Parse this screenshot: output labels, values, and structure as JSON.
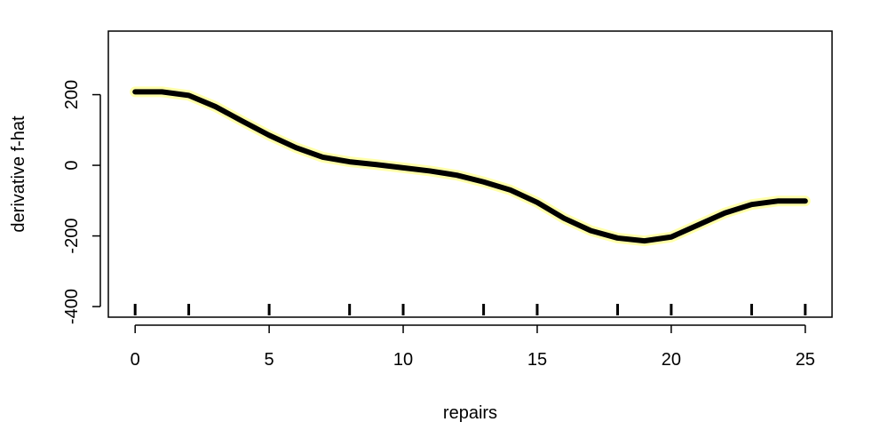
{
  "chart_data": {
    "type": "line",
    "title": "",
    "xlabel": "repairs",
    "ylabel": "derivative f-hat",
    "xlim": [
      -1,
      26
    ],
    "ylim": [
      -430,
      380
    ],
    "x_ticks": [
      0,
      5,
      10,
      15,
      20,
      25
    ],
    "x_tick_labels": [
      "0",
      "5",
      "10",
      "15",
      "20",
      "25"
    ],
    "y_ticks": [
      -400,
      -200,
      0,
      200
    ],
    "y_tick_labels": [
      "-400",
      "-200",
      "0",
      "200"
    ],
    "grid": false,
    "legend": "none",
    "series": [
      {
        "color": "#000000",
        "halo_color": "#ffff66",
        "x": [
          0,
          1,
          2,
          3,
          4,
          5,
          6,
          7,
          8,
          9,
          10,
          11,
          12,
          13,
          14,
          15,
          16,
          17,
          18,
          19,
          20,
          21,
          22,
          23,
          24,
          25
        ],
        "y": [
          208,
          208,
          198,
          166,
          125,
          85,
          50,
          23,
          10,
          2,
          -7,
          -16,
          -28,
          -47,
          -70,
          -105,
          -150,
          -185,
          -206,
          -214,
          -203,
          -169,
          -135,
          -111,
          -101,
          -101
        ]
      }
    ],
    "rug": [
      0,
      2,
      5,
      8,
      10,
      13,
      15,
      18,
      20,
      23,
      25
    ]
  }
}
